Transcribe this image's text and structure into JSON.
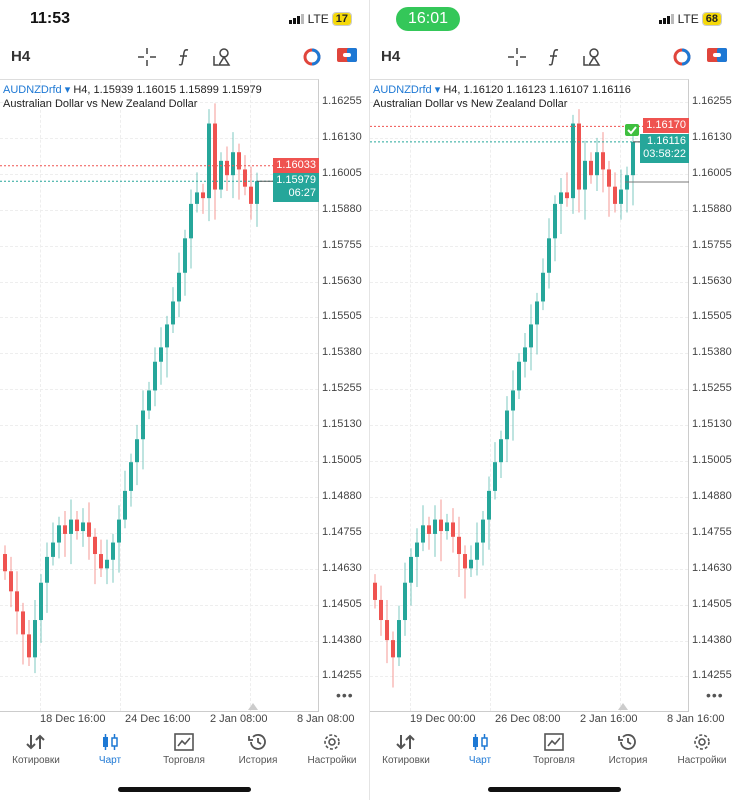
{
  "colors": {
    "up": "#26a69a",
    "down": "#ef5350",
    "accent": "#1d78d4"
  },
  "panels": [
    {
      "clock": "11:53",
      "network": "LTE",
      "battery": "17",
      "timeframe": "H4",
      "symbol": "AUDNZDrfd",
      "ohlc_text": "H4, 1.15939 1.16015 1.15899 1.15979",
      "description": "Australian Dollar vs New Zealand Dollar",
      "price_labels": [
        "1.16255",
        "1.16130",
        "1.16005",
        "1.15880",
        "1.15755",
        "1.15630",
        "1.15505",
        "1.15380",
        "1.15255",
        "1.15130",
        "1.15005",
        "1.14880",
        "1.14755",
        "1.14630",
        "1.14505",
        "1.14380",
        "1.14255"
      ],
      "ask": {
        "price": "1.16033",
        "value": 1.16033
      },
      "bid": {
        "price": "1.15979",
        "value": 1.15979,
        "timer": "06:27"
      },
      "x_labels": [
        "18 Dec 16:00",
        "24 Dec 16:00",
        "2 Jan 08:00",
        "8 Jan 08:00"
      ],
      "closes": [
        1.1462,
        1.1455,
        1.1448,
        1.144,
        1.1432,
        1.1445,
        1.1458,
        1.1467,
        1.1472,
        1.1478,
        1.1475,
        1.148,
        1.1476,
        1.1479,
        1.1474,
        1.1468,
        1.1463,
        1.1466,
        1.1472,
        1.148,
        1.149,
        1.15,
        1.1508,
        1.1518,
        1.1525,
        1.1535,
        1.154,
        1.1548,
        1.1556,
        1.1566,
        1.1578,
        1.159,
        1.1594,
        1.1592,
        1.1618,
        1.1595,
        1.1605,
        1.16,
        1.1608,
        1.1602,
        1.1596,
        1.159,
        1.15979
      ]
    },
    {
      "clock": "16:01",
      "network": "LTE",
      "battery": "68",
      "timeframe": "H4",
      "symbol": "AUDNZDrfd",
      "ohlc_text": "H4, 1.16120 1.16123 1.16107 1.16116",
      "description": "Australian Dollar vs New Zealand Dollar",
      "price_labels": [
        "1.16255",
        "1.16130",
        "1.16005",
        "1.15880",
        "1.15755",
        "1.15630",
        "1.15505",
        "1.15380",
        "1.15255",
        "1.15130",
        "1.15005",
        "1.14880",
        "1.14755",
        "1.14630",
        "1.14505",
        "1.14380",
        "1.14255"
      ],
      "ask": {
        "price": "1.16170",
        "value": 1.1617
      },
      "bid": {
        "price": "1.16116",
        "value": 1.16116,
        "timer": "03:58:22"
      },
      "x_labels": [
        "19 Dec 00:00",
        "26 Dec 08:00",
        "2 Jan 16:00",
        "8 Jan 16:00"
      ],
      "closes": [
        1.1452,
        1.1445,
        1.1438,
        1.1432,
        1.1445,
        1.1458,
        1.1467,
        1.1472,
        1.1478,
        1.1475,
        1.148,
        1.1476,
        1.1479,
        1.1474,
        1.1468,
        1.1463,
        1.1466,
        1.1472,
        1.148,
        1.149,
        1.15,
        1.1508,
        1.1518,
        1.1525,
        1.1535,
        1.154,
        1.1548,
        1.1556,
        1.1566,
        1.1578,
        1.159,
        1.1594,
        1.1592,
        1.1618,
        1.1595,
        1.1605,
        1.16,
        1.1608,
        1.1602,
        1.1596,
        1.159,
        1.1595,
        1.16,
        1.16116
      ]
    }
  ],
  "nav": [
    "Котировки",
    "Чарт",
    "Торговля",
    "История",
    "Настройки"
  ],
  "more": "•••"
}
